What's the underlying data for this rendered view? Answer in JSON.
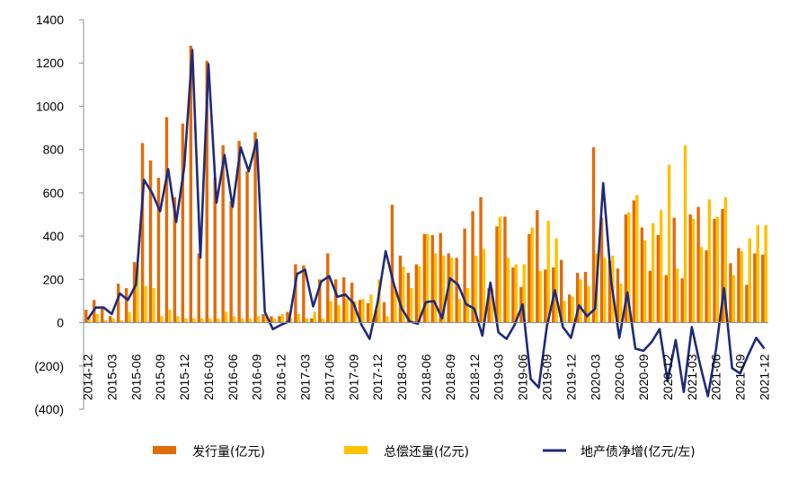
{
  "chart_data": {
    "type": "bar",
    "colors": {
      "issuance": "#E26B0A",
      "repayment": "#FFC000",
      "net": "#1F2A7A",
      "negative_tick": "#C00000"
    },
    "y_ticks": [
      "1400",
      "1200",
      "1000",
      "800",
      "600",
      "400",
      "200",
      "0",
      "(200)",
      "(400)"
    ],
    "y_tick_values": [
      1400,
      1200,
      1000,
      800,
      600,
      400,
      200,
      0,
      -200,
      -400
    ],
    "ylim": [
      -400,
      1400
    ],
    "x_tick_labels": [
      "2014-12",
      "2015-03",
      "2015-06",
      "2015-09",
      "2015-12",
      "2016-03",
      "2016-06",
      "2016-09",
      "2016-12",
      "2017-03",
      "2017-06",
      "2017-09",
      "2017-12",
      "2018-03",
      "2018-06",
      "2018-09",
      "2018-12",
      "2019-03",
      "2019-06",
      "2019-09",
      "2019-12",
      "2020-03",
      "2020-06",
      "2020-09",
      "2020-12",
      "2021-03",
      "2021-06",
      "2021-09",
      "2021-12"
    ],
    "categories": [
      "2014-12",
      "2015-01",
      "2015-02",
      "2015-03",
      "2015-04",
      "2015-05",
      "2015-06",
      "2015-07",
      "2015-08",
      "2015-09",
      "2015-10",
      "2015-11",
      "2015-12",
      "2016-01",
      "2016-02",
      "2016-03",
      "2016-04",
      "2016-05",
      "2016-06",
      "2016-07",
      "2016-08",
      "2016-09",
      "2016-10",
      "2016-11",
      "2016-12",
      "2017-01",
      "2017-02",
      "2017-03",
      "2017-04",
      "2017-05",
      "2017-06",
      "2017-07",
      "2017-08",
      "2017-09",
      "2017-10",
      "2017-11",
      "2017-12",
      "2018-01",
      "2018-02",
      "2018-03",
      "2018-04",
      "2018-05",
      "2018-06",
      "2018-07",
      "2018-08",
      "2018-09",
      "2018-10",
      "2018-11",
      "2018-12",
      "2019-01",
      "2019-02",
      "2019-03",
      "2019-04",
      "2019-05",
      "2019-06",
      "2019-07",
      "2019-08",
      "2019-09",
      "2019-10",
      "2019-11",
      "2019-12",
      "2020-01",
      "2020-02",
      "2020-03",
      "2020-04",
      "2020-05",
      "2020-06",
      "2020-07",
      "2020-08",
      "2020-09",
      "2020-10",
      "2020-11",
      "2020-12",
      "2021-01",
      "2021-02",
      "2021-03",
      "2021-04",
      "2021-05",
      "2021-06",
      "2021-07",
      "2021-08",
      "2021-09",
      "2021-10",
      "2021-11",
      "2021-12"
    ],
    "series": [
      {
        "name": "发行量(亿元)",
        "type": "bar",
        "values": [
          60,
          105,
          75,
          30,
          180,
          160,
          280,
          830,
          750,
          670,
          950,
          580,
          920,
          1280,
          320,
          1210,
          670,
          820,
          560,
          840,
          700,
          880,
          40,
          30,
          30,
          50,
          270,
          265,
          20,
          200,
          320,
          200,
          210,
          185,
          105,
          90,
          60,
          95,
          545,
          310,
          230,
          270,
          410,
          405,
          415,
          320,
          300,
          435,
          515,
          580,
          160,
          445,
          490,
          255,
          165,
          410,
          520,
          245,
          255,
          290,
          130,
          230,
          235,
          810,
          485,
          285,
          250,
          500,
          565,
          440,
          240,
          405,
          220,
          485,
          205,
          500,
          535,
          335,
          480,
          525,
          275,
          345,
          175,
          320,
          315
        ],
        "color_key": "issuance"
      },
      {
        "name": "总偿还量(亿元)",
        "type": "bar",
        "values": [
          20,
          40,
          10,
          20,
          10,
          50,
          270,
          170,
          160,
          30,
          60,
          30,
          20,
          20,
          20,
          20,
          20,
          50,
          30,
          20,
          20,
          30,
          30,
          20,
          40,
          20,
          40,
          20,
          50,
          20,
          100,
          80,
          110,
          100,
          110,
          130,
          200,
          30,
          150,
          260,
          160,
          260,
          410,
          320,
          310,
          300,
          110,
          160,
          310,
          340,
          160,
          490,
          300,
          270,
          270,
          440,
          240,
          470,
          390,
          100,
          120,
          200,
          170,
          320,
          300,
          310,
          180,
          510,
          590,
          380,
          460,
          520,
          730,
          250,
          820,
          480,
          350,
          570,
          490,
          580,
          220,
          330,
          390,
          450,
          450
        ],
        "color_key": "repayment"
      },
      {
        "name": "地产债净增(亿元/左)",
        "type": "line",
        "values": [
          15,
          70,
          70,
          40,
          135,
          105,
          175,
          660,
          600,
          515,
          710,
          465,
          720,
          1260,
          300,
          1195,
          555,
          775,
          535,
          810,
          700,
          845,
          50,
          -30,
          -10,
          5,
          225,
          245,
          75,
          190,
          215,
          120,
          130,
          90,
          -10,
          -75,
          95,
          330,
          180,
          65,
          5,
          -5,
          95,
          100,
          20,
          205,
          175,
          85,
          65,
          -60,
          185,
          -45,
          -75,
          -10,
          85,
          -260,
          -300,
          -20,
          150,
          -20,
          -70,
          80,
          30,
          65,
          645,
          190,
          -70,
          140,
          -120,
          -130,
          -90,
          -30,
          -270,
          -80,
          -320,
          -20,
          -190,
          -340,
          -125,
          160,
          -210,
          -235,
          -150,
          -70,
          -120
        ],
        "color_key": "net"
      }
    ],
    "legend": {
      "position": "bottom",
      "entries": [
        "发行量(亿元)",
        "总偿还量(亿元)",
        "地产债净增(亿元/左)"
      ]
    },
    "grid": false,
    "title": "",
    "xlabel": "",
    "ylabel": ""
  }
}
